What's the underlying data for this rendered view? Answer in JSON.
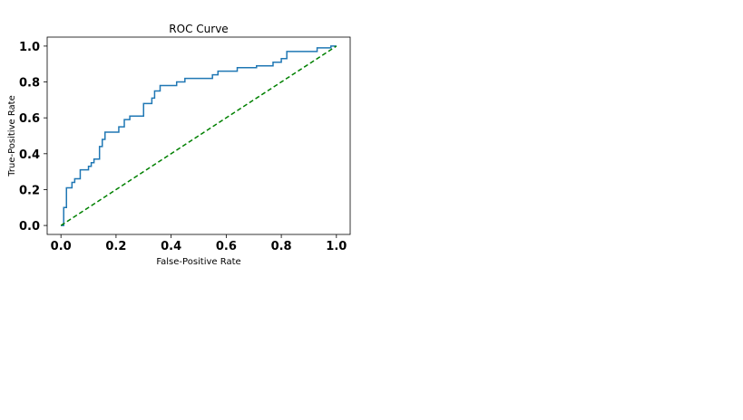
{
  "chart_data": {
    "type": "line",
    "title": "ROC Curve",
    "xlabel": "False-Positive Rate",
    "ylabel": "True-Positive Rate",
    "xlim": [
      -0.05,
      1.05
    ],
    "ylim": [
      -0.05,
      1.05
    ],
    "xticks": [
      0.0,
      0.2,
      0.4,
      0.6,
      0.8,
      1.0
    ],
    "xtick_labels": [
      "0.0",
      "0.2",
      "0.4",
      "0.6",
      "0.8",
      "1.0"
    ],
    "yticks": [
      0.0,
      0.2,
      0.4,
      0.6,
      0.8,
      1.0
    ],
    "ytick_labels": [
      "0.0",
      "0.2",
      "0.4",
      "0.6",
      "0.8",
      "1.0"
    ],
    "grid": false,
    "legend": "none",
    "series": [
      {
        "style": "solid",
        "color": "#1f77b4",
        "x": [
          0.0,
          0.01,
          0.01,
          0.02,
          0.02,
          0.04,
          0.04,
          0.05,
          0.05,
          0.07,
          0.07,
          0.1,
          0.1,
          0.11,
          0.11,
          0.12,
          0.12,
          0.14,
          0.14,
          0.15,
          0.15,
          0.16,
          0.16,
          0.21,
          0.21,
          0.23,
          0.23,
          0.25,
          0.25,
          0.3,
          0.3,
          0.33,
          0.33,
          0.34,
          0.34,
          0.36,
          0.36,
          0.42,
          0.42,
          0.45,
          0.45,
          0.55,
          0.55,
          0.57,
          0.57,
          0.64,
          0.64,
          0.71,
          0.71,
          0.77,
          0.77,
          0.8,
          0.8,
          0.82,
          0.82,
          0.93,
          0.93,
          0.98,
          0.98,
          1.0
        ],
        "y": [
          0.0,
          0.0,
          0.1,
          0.1,
          0.21,
          0.21,
          0.24,
          0.24,
          0.26,
          0.26,
          0.31,
          0.31,
          0.33,
          0.33,
          0.35,
          0.35,
          0.37,
          0.37,
          0.44,
          0.44,
          0.48,
          0.48,
          0.52,
          0.52,
          0.55,
          0.55,
          0.59,
          0.59,
          0.61,
          0.61,
          0.68,
          0.68,
          0.71,
          0.71,
          0.75,
          0.75,
          0.78,
          0.78,
          0.8,
          0.8,
          0.82,
          0.82,
          0.84,
          0.84,
          0.86,
          0.86,
          0.88,
          0.88,
          0.89,
          0.89,
          0.91,
          0.91,
          0.93,
          0.93,
          0.97,
          0.97,
          0.99,
          0.99,
          1.0,
          1.0
        ]
      },
      {
        "style": "dashed",
        "color": "#008000",
        "x": [
          0.0,
          1.0
        ],
        "y": [
          0.0,
          1.0
        ]
      }
    ]
  }
}
